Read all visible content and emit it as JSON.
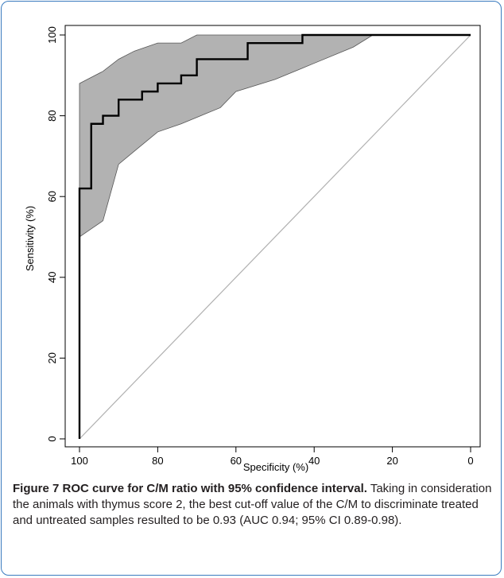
{
  "figure": {
    "caption_title": "Figure 7 ROC curve for C/M ratio with 95% confidence interval.",
    "caption_text": "Taking in consideration the animals with thymus score 2, the best cut-off value of the C/M to discriminate treated and untreated samples resulted to be 0.93 (AUC 0.94; 95% CI 0.89-0.98).",
    "colors": {
      "border": "#3a7bbf",
      "band": "#b2b2b2",
      "curve": "#000000",
      "diagonal": "#b0b0b0"
    }
  },
  "chart_data": {
    "type": "line",
    "title": "",
    "xlabel": "Specificity (%)",
    "ylabel": "Sensitivity (%)",
    "xlim": [
      100,
      0
    ],
    "ylim": [
      0,
      100
    ],
    "x_reversed": true,
    "xticks": [
      "100",
      "80",
      "60",
      "40",
      "20",
      "0"
    ],
    "yticks": [
      "0",
      "20",
      "40",
      "60",
      "80",
      "100"
    ],
    "grid": false,
    "series": [
      {
        "role": "roc-curve",
        "x": [
          100,
          100,
          100,
          97,
          97,
          94,
          94,
          90,
          90,
          84,
          84,
          80,
          80,
          74,
          74,
          70,
          70,
          57,
          57,
          43,
          43,
          25,
          0
        ],
        "y": [
          0,
          50,
          62,
          62,
          78,
          78,
          80,
          80,
          84,
          84,
          86,
          86,
          88,
          88,
          90,
          90,
          94,
          94,
          98,
          98,
          100,
          100,
          100
        ]
      },
      {
        "role": "ci-upper",
        "x": [
          100,
          98,
          94,
          90,
          86,
          80,
          74,
          70,
          0
        ],
        "y": [
          88,
          89,
          91,
          94,
          96,
          98,
          98,
          100,
          100
        ]
      },
      {
        "role": "ci-lower",
        "x": [
          100,
          97,
          94,
          90,
          85,
          80,
          74,
          64,
          60,
          50,
          40,
          30,
          25,
          0
        ],
        "y": [
          50,
          52,
          54,
          68,
          72,
          76,
          78,
          82,
          86,
          89,
          93,
          97,
          100,
          100
        ]
      },
      {
        "role": "reference-diagonal",
        "x": [
          100,
          0
        ],
        "y": [
          0,
          100
        ]
      }
    ]
  }
}
